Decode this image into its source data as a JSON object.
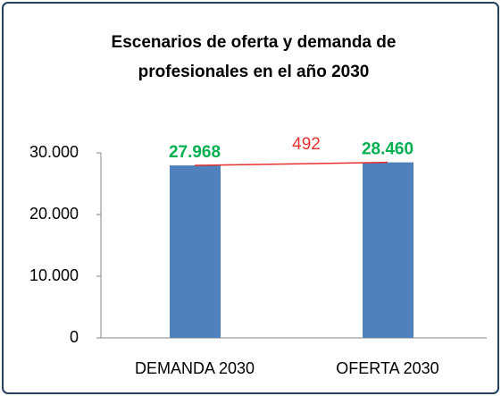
{
  "chart_data": {
    "type": "bar",
    "title": [
      "Escenarios de oferta y demanda de",
      "profesionales en el año 2030"
    ],
    "categories": [
      "DEMANDA 2030",
      "OFERTA 2030"
    ],
    "values": [
      27968,
      28460
    ],
    "value_labels": [
      "27.968",
      "28.460"
    ],
    "color": "#4f81bd",
    "value_label_color": "#00b050",
    "annotation": {
      "text": "492",
      "color": "#e8312f"
    },
    "ylim": [
      0,
      30000
    ],
    "yticks": [
      0,
      {
        "value": 10000,
        "label": "10.000"
      },
      {
        "value": 20000,
        "label": "20.000"
      },
      {
        "value": 30000,
        "label": "30.000"
      }
    ],
    "grid": false
  }
}
